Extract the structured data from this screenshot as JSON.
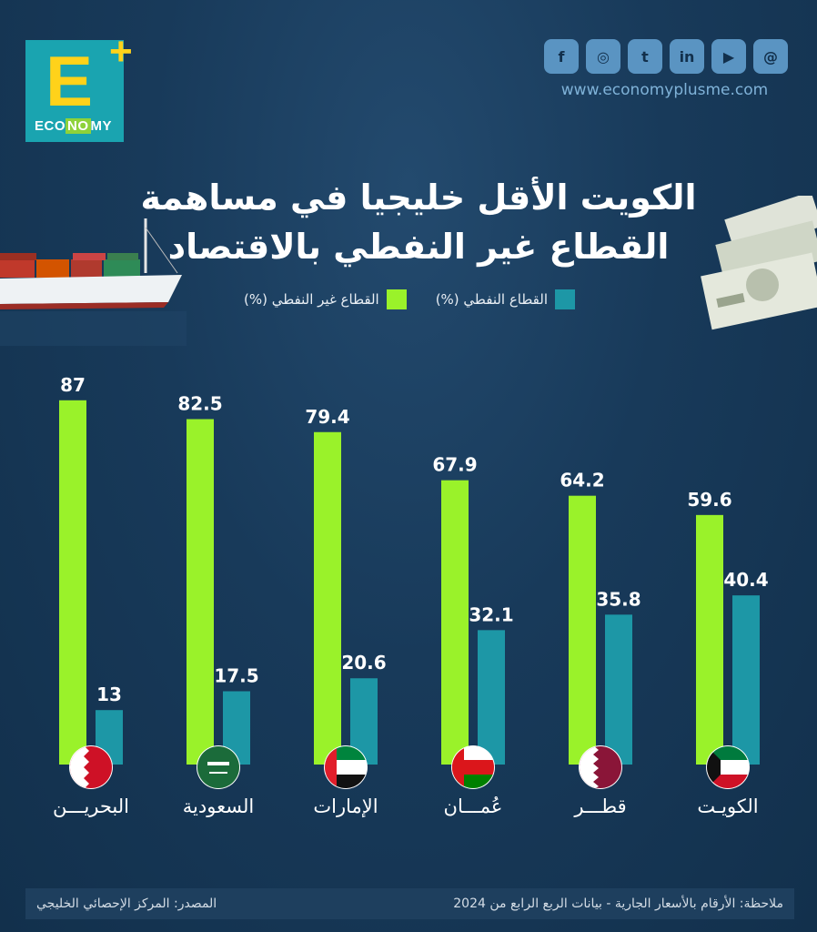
{
  "brand": {
    "logo_letter": "E",
    "logo_plus": "+",
    "logo_word_a": "ECO",
    "logo_word_b": "NO",
    "logo_word_c": "MY",
    "website": "www.economyplusme.com"
  },
  "socials": [
    {
      "icon": "facebook-icon",
      "glyph": "f"
    },
    {
      "icon": "instagram-icon",
      "glyph": "◎"
    },
    {
      "icon": "twitter-icon",
      "glyph": "t"
    },
    {
      "icon": "linkedin-icon",
      "glyph": "in"
    },
    {
      "icon": "youtube-icon",
      "glyph": "▶"
    },
    {
      "icon": "threads-icon",
      "glyph": "@"
    }
  ],
  "title_line1": "الكويت الأقل خليجيا في مساهمة",
  "title_line2": "القطاع غير النفطي بالاقتصاد",
  "footer": {
    "note": "ملاحظة: الأرقام بالأسعار الجارية - بيانات الربع الرابع من 2024",
    "source": "المصدر: المركز الإحصائي الخليجي"
  },
  "chart_data": {
    "type": "bar",
    "title": "",
    "xlabel": "",
    "ylabel": "",
    "ylim": [
      0,
      100
    ],
    "grid": false,
    "legend_placement": "top",
    "categories": [
      "البحريـــن",
      "السعودية",
      "الإمارات",
      "عُمـــان",
      "قطـــر",
      "الكويـت"
    ],
    "flags": [
      "bahrain-flag-icon",
      "saudi-flag-icon",
      "uae-flag-icon",
      "oman-flag-icon",
      "qatar-flag-icon",
      "kuwait-flag-icon"
    ],
    "series": [
      {
        "name": "القطاع غير النفطي (%)",
        "color": "#9af22a",
        "values": [
          87,
          82.5,
          79.4,
          67.9,
          64.2,
          59.6
        ]
      },
      {
        "name": "القطاع النفطي (%)",
        "color": "#1d97a6",
        "values": [
          13,
          17.5,
          20.6,
          32.1,
          35.8,
          40.4
        ]
      }
    ]
  }
}
